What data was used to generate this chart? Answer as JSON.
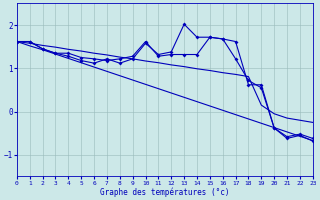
{
  "xlabel": "Graphe des températures (°c)",
  "background_color": "#cce8e8",
  "line_color": "#0000bb",
  "hours": [
    0,
    1,
    2,
    3,
    4,
    5,
    6,
    7,
    8,
    9,
    10,
    11,
    12,
    13,
    14,
    15,
    16,
    17,
    18,
    19,
    20,
    21,
    22,
    23
  ],
  "series1": [
    1.62,
    1.62,
    1.45,
    1.35,
    1.35,
    1.25,
    1.22,
    1.18,
    1.22,
    1.28,
    1.62,
    1.28,
    1.32,
    1.32,
    1.32,
    1.72,
    1.68,
    1.62,
    0.62,
    0.62,
    -0.38,
    -0.62,
    -0.55,
    -0.68
  ],
  "series2": [
    1.62,
    1.62,
    1.45,
    1.35,
    1.28,
    1.18,
    1.12,
    1.22,
    1.12,
    1.22,
    1.58,
    1.32,
    1.38,
    2.02,
    1.72,
    1.72,
    1.68,
    1.22,
    0.72,
    0.55,
    -0.38,
    -0.58,
    -0.52,
    -0.62
  ],
  "series3": [
    1.62,
    1.58,
    1.53,
    1.49,
    1.44,
    1.4,
    1.35,
    1.31,
    1.26,
    1.22,
    1.17,
    1.13,
    1.08,
    1.04,
    0.99,
    0.95,
    0.9,
    0.86,
    0.81,
    0.15,
    -0.05,
    -0.15,
    -0.2,
    -0.25
  ],
  "series4": [
    1.62,
    1.52,
    1.43,
    1.33,
    1.23,
    1.13,
    1.03,
    0.93,
    0.83,
    0.73,
    0.63,
    0.53,
    0.43,
    0.33,
    0.23,
    0.13,
    0.03,
    -0.07,
    -0.17,
    -0.27,
    -0.37,
    -0.47,
    -0.57,
    -0.67
  ],
  "ylim": [
    -1.5,
    2.5
  ],
  "yticks": [
    -1,
    0,
    1,
    2
  ],
  "xlim": [
    0,
    23
  ],
  "xticks": [
    0,
    1,
    2,
    3,
    4,
    5,
    6,
    7,
    8,
    9,
    10,
    11,
    12,
    13,
    14,
    15,
    16,
    17,
    18,
    19,
    20,
    21,
    22,
    23
  ],
  "markersize": 2.0,
  "linewidth": 0.8
}
